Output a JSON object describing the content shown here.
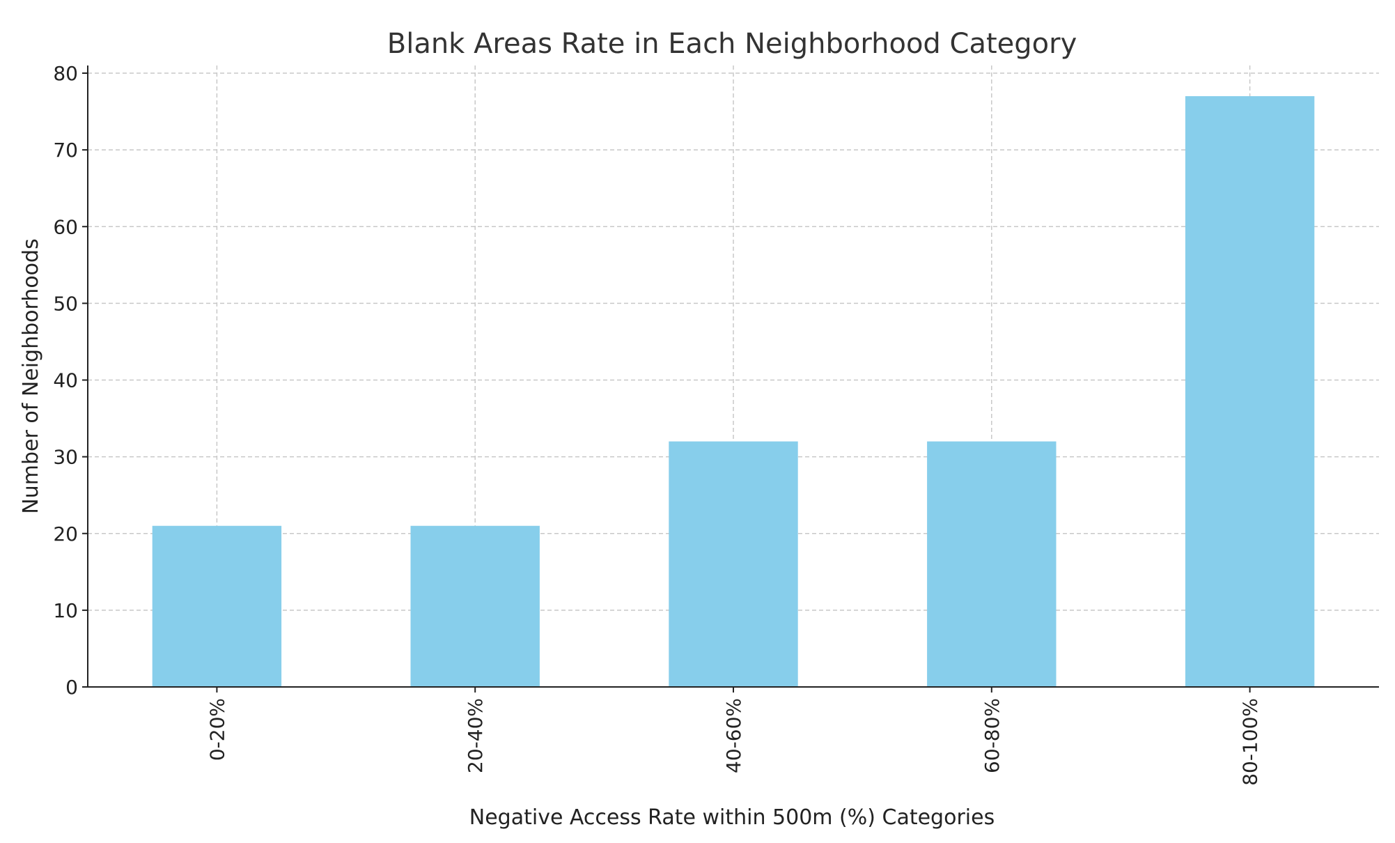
{
  "chart_data": {
    "type": "bar",
    "title": "Blank Areas Rate in Each Neighborhood Category",
    "xlabel": "Negative Access Rate within 500m (%) Categories",
    "ylabel": "Number of Neighborhoods",
    "categories": [
      "0-20%",
      "20-40%",
      "40-60%",
      "60-80%",
      "80-100%"
    ],
    "values": [
      21,
      21,
      32,
      32,
      77
    ],
    "ylim": [
      0,
      80
    ],
    "yticks": [
      "0",
      "10",
      "20",
      "30",
      "40",
      "50",
      "60",
      "70",
      "80"
    ],
    "grid": true,
    "bar_color": "#87CEEB"
  }
}
